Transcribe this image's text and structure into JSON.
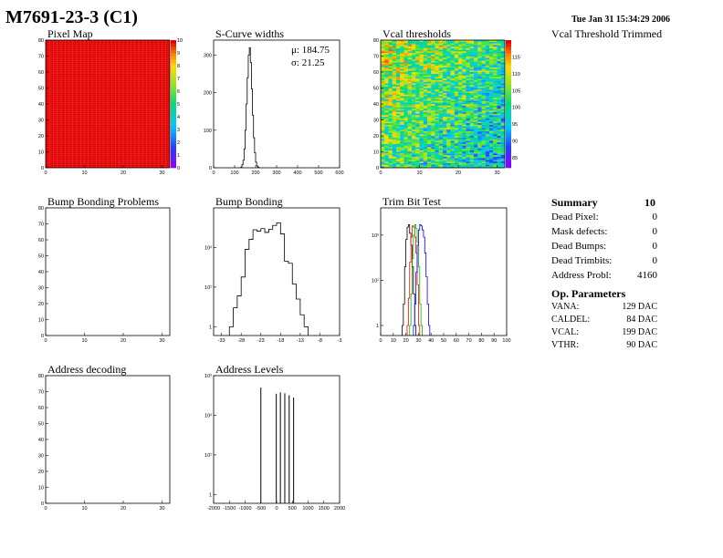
{
  "page": {
    "title": "M7691-23-3 (C1)",
    "date": "Tue Jan 31 15:34:29 2006",
    "vcal_trim_label": "Vcal Threshold Trimmed"
  },
  "summary": {
    "heading": "Summary",
    "total": "10",
    "rows": [
      {
        "label": "Dead Pixel:",
        "value": "0"
      },
      {
        "label": "Mask defects:",
        "value": "0"
      },
      {
        "label": "Dead Bumps:",
        "value": "0"
      },
      {
        "label": "Dead Trimbits:",
        "value": "0"
      },
      {
        "label": "Address Probl:",
        "value": "4160"
      }
    ]
  },
  "op_params": {
    "heading": "Op. Parameters",
    "rows": [
      {
        "label": "VANA:",
        "value": "129 DAC"
      },
      {
        "label": "CALDEL:",
        "value": "84 DAC"
      },
      {
        "label": "VCAL:",
        "value": "199 DAC"
      },
      {
        "label": "VTHR:",
        "value": "90 DAC"
      }
    ]
  },
  "chart_data": [
    {
      "id": "pixel-map",
      "type": "heatmap",
      "title": "Pixel Map",
      "xlim": [
        0,
        32
      ],
      "ylim": [
        0,
        80
      ],
      "xticks": [
        0,
        10,
        20,
        30
      ],
      "yticks": [
        0,
        10,
        20,
        30,
        40,
        50,
        60,
        70,
        80
      ],
      "fill_value": 10,
      "colorbar": {
        "range": [
          0,
          10
        ],
        "ticks": [
          0,
          1,
          2,
          3,
          4,
          5,
          6,
          7,
          8,
          9,
          10
        ]
      }
    },
    {
      "id": "scurve-widths",
      "type": "line",
      "title": "S-Curve widths",
      "xlim": [
        0,
        600
      ],
      "ylim": [
        0,
        340
      ],
      "xticks": [
        0,
        100,
        200,
        300,
        400,
        500,
        600
      ],
      "yticks": [
        0,
        100,
        200,
        300
      ],
      "stats": {
        "mu": "μ: 184.75",
        "sigma": "σ: 21.25"
      },
      "series": [
        {
          "bin_start": 130,
          "bin_width": 5,
          "values": [
            2,
            8,
            20,
            50,
            100,
            170,
            240,
            300,
            320,
            280,
            210,
            140,
            80,
            40,
            15,
            5,
            2
          ]
        }
      ]
    },
    {
      "id": "vcal-thresholds",
      "type": "heatmap",
      "title": "Vcal thresholds",
      "xlim": [
        0,
        32
      ],
      "ylim": [
        0,
        80
      ],
      "xticks": [
        0,
        10,
        20,
        30
      ],
      "yticks": [
        0,
        10,
        20,
        30,
        40,
        50,
        60,
        70,
        80
      ],
      "value_range": [
        82,
        120
      ],
      "colorbar": {
        "range": [
          82,
          120
        ],
        "ticks": [
          85,
          90,
          95,
          100,
          105,
          110,
          115
        ]
      }
    },
    {
      "id": "bump-bonding-problems",
      "type": "heatmap",
      "title": "Bump Bonding Problems",
      "xlim": [
        0,
        32
      ],
      "ylim": [
        0,
        80
      ],
      "xticks": [
        0,
        10,
        20,
        30
      ],
      "yticks": [
        0,
        10,
        20,
        30,
        40,
        50,
        60,
        70,
        80
      ]
    },
    {
      "id": "bump-bonding",
      "type": "line",
      "title": "Bump Bonding",
      "log_y": true,
      "xlim": [
        -35,
        -3
      ],
      "ylim": [
        0.6,
        1000
      ],
      "xticks": [
        -33,
        -28,
        -23,
        -18,
        -13,
        -8,
        -3
      ],
      "yticks": [
        1,
        10,
        100
      ],
      "series": [
        {
          "bin_start": -31,
          "bin_width": 1,
          "values": [
            1,
            3,
            6,
            18,
            90,
            160,
            280,
            260,
            300,
            240,
            290,
            360,
            420,
            220,
            45,
            40,
            12,
            5,
            2,
            1
          ]
        }
      ]
    },
    {
      "id": "trim-bit-test",
      "type": "line",
      "title": "Trim Bit Test",
      "log_y": true,
      "xlim": [
        0,
        100
      ],
      "ylim": [
        0.6,
        400
      ],
      "xticks": [
        0,
        10,
        20,
        30,
        40,
        50,
        60,
        70,
        80,
        90,
        100
      ],
      "yticks": [
        1,
        10,
        100
      ],
      "series": [
        {
          "color": "#000000",
          "bin_start": 17,
          "bin_width": 1,
          "values": [
            1,
            3,
            20,
            80,
            150,
            170,
            110,
            60,
            20,
            5,
            1
          ]
        },
        {
          "color": "#ff0000",
          "bin_start": 21,
          "bin_width": 1,
          "values": [
            1,
            4,
            25,
            90,
            160,
            150,
            90,
            40,
            8,
            1
          ]
        },
        {
          "color": "#00b400",
          "bin_start": 23,
          "bin_width": 1,
          "values": [
            1,
            5,
            30,
            100,
            170,
            140,
            70,
            20,
            3,
            1
          ]
        },
        {
          "color": "#0000ff",
          "bin_start": 26,
          "bin_width": 1,
          "values": [
            1,
            3,
            15,
            60,
            130,
            170,
            160,
            130,
            90,
            40,
            12,
            3,
            1
          ]
        }
      ]
    },
    {
      "id": "address-decoding",
      "type": "heatmap",
      "title": "Address decoding",
      "xlim": [
        0,
        32
      ],
      "ylim": [
        0,
        80
      ],
      "xticks": [
        0,
        10,
        20,
        30
      ],
      "yticks": [
        0,
        10,
        20,
        30,
        40,
        50,
        60,
        70,
        80
      ]
    },
    {
      "id": "address-levels",
      "type": "line",
      "title": "Address Levels",
      "log_y": true,
      "xlim": [
        -2000,
        2000
      ],
      "ylim": [
        0.6,
        1000
      ],
      "xticks": [
        -2000,
        -1500,
        -1000,
        -500,
        0,
        500,
        1000,
        1500,
        2000
      ],
      "yticks": [
        1,
        10,
        100,
        1000
      ],
      "spikes": [
        {
          "x": -500,
          "value": 500
        },
        {
          "x": -10,
          "value": 350
        },
        {
          "x": 120,
          "value": 380
        },
        {
          "x": 260,
          "value": 360
        },
        {
          "x": 400,
          "value": 320
        },
        {
          "x": 540,
          "value": 280
        }
      ]
    }
  ]
}
